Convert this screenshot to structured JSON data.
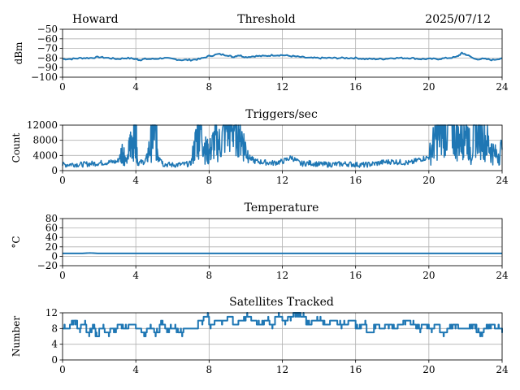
{
  "header": {
    "left": "Howard",
    "center": "Threshold",
    "right": "2025/07/12"
  },
  "colors": {
    "series": "#1f77b4",
    "grid": "#b0b0b0",
    "axis": "#000000"
  },
  "chart_data": [
    {
      "type": "line",
      "title": "",
      "xlabel": "",
      "ylabel": "dBm",
      "xlim": [
        0,
        24
      ],
      "ylim": [
        -100,
        -50
      ],
      "x_ticks": [
        0,
        4,
        8,
        12,
        16,
        20,
        24
      ],
      "x_tick_labels": [
        "0",
        "4",
        "8",
        "12",
        "16",
        "20",
        "24"
      ],
      "y_ticks": [
        -100,
        -90,
        -80,
        -70,
        -60,
        -50
      ],
      "y_tick_labels": [
        "−100",
        "−90",
        "−80",
        "−70",
        "−60",
        "−50"
      ],
      "grid": true,
      "series": [
        {
          "style": "smooth",
          "x": [
            0,
            0.5,
            1,
            1.5,
            2,
            2.5,
            3,
            3.5,
            4,
            4.2,
            4.5,
            5,
            5.5,
            6,
            6.5,
            7,
            7.5,
            8,
            8.5,
            9,
            9.3,
            9.6,
            10,
            10.5,
            11,
            11.5,
            12,
            12.5,
            13,
            13.5,
            14,
            14.5,
            15,
            15.5,
            16,
            16.5,
            17,
            17.5,
            18,
            18.5,
            19,
            19.5,
            20,
            20.5,
            21,
            21.5,
            21.8,
            22,
            22.5,
            23,
            23.5,
            24
          ],
          "values": [
            -81,
            -81,
            -80,
            -80,
            -79,
            -80,
            -81,
            -80,
            -81,
            -82,
            -81,
            -81,
            -80,
            -81,
            -82,
            -82,
            -81,
            -78,
            -76,
            -77,
            -79,
            -77,
            -79,
            -78,
            -78,
            -77,
            -77,
            -78,
            -79,
            -80,
            -80,
            -80,
            -80,
            -80,
            -80,
            -81,
            -81,
            -81,
            -80,
            -80,
            -80,
            -81,
            -81,
            -81,
            -80,
            -79,
            -75,
            -76,
            -81,
            -81,
            -82,
            -80
          ]
        }
      ]
    },
    {
      "type": "line",
      "title": "Triggers/sec",
      "xlabel": "",
      "ylabel": "Count",
      "xlim": [
        0,
        24
      ],
      "ylim": [
        0,
        12000
      ],
      "x_ticks": [
        0,
        4,
        8,
        12,
        16,
        20,
        24
      ],
      "x_tick_labels": [
        "0",
        "4",
        "8",
        "12",
        "16",
        "20",
        "24"
      ],
      "y_ticks": [
        0,
        4000,
        8000,
        12000
      ],
      "y_tick_labels": [
        "0",
        "4000",
        "8000",
        "12000"
      ],
      "grid": true,
      "series": [
        {
          "style": "noisy",
          "x": [
            0,
            0.5,
            1,
            1.5,
            2,
            2.5,
            3,
            3.3,
            3.5,
            3.7,
            3.9,
            4,
            4.1,
            4.5,
            4.8,
            5,
            5.2,
            5.5,
            6,
            6.5,
            7,
            7.3,
            7.5,
            7.8,
            8,
            8.3,
            8.6,
            9,
            9.3,
            9.6,
            9.9,
            10.2,
            10.5,
            11,
            11.5,
            12,
            12.5,
            13,
            13.5,
            14,
            14.5,
            15,
            15.5,
            16,
            16.5,
            17,
            17.5,
            18,
            18.5,
            19,
            19.5,
            20,
            20.3,
            20.6,
            20.9,
            21.2,
            21.5,
            21.8,
            22,
            22.3,
            22.6,
            23,
            23.3,
            23.6,
            24
          ],
          "values": [
            1500,
            1700,
            1600,
            1800,
            2000,
            2200,
            2400,
            5500,
            2200,
            7000,
            9000,
            12000,
            2000,
            2400,
            6500,
            12000,
            5000,
            1700,
            1500,
            1600,
            1800,
            8000,
            12000,
            5500,
            4500,
            8000,
            7000,
            12000,
            12000,
            12000,
            7000,
            3500,
            2500,
            2200,
            2000,
            2400,
            3500,
            1800,
            2000,
            1700,
            1600,
            1700,
            1800,
            1600,
            1500,
            1800,
            2200,
            2400,
            2200,
            2000,
            3000,
            3500,
            8000,
            10000,
            12000,
            12000,
            8000,
            9000,
            12000,
            4500,
            12000,
            9000,
            6500,
            4000,
            5500
          ]
        }
      ]
    },
    {
      "type": "line",
      "title": "Temperature",
      "xlabel": "",
      "ylabel": "°C",
      "xlim": [
        0,
        24
      ],
      "ylim": [
        -20,
        80
      ],
      "x_ticks": [
        0,
        4,
        8,
        12,
        16,
        20,
        24
      ],
      "x_tick_labels": [
        "0",
        "4",
        "8",
        "12",
        "16",
        "20",
        "24"
      ],
      "y_ticks": [
        -20,
        0,
        20,
        40,
        60,
        80
      ],
      "y_tick_labels": [
        "−20",
        "0",
        "20",
        "40",
        "60",
        "80"
      ],
      "grid": true,
      "series": [
        {
          "style": "smooth",
          "x": [
            0,
            1,
            1.5,
            2,
            3,
            4,
            6,
            8,
            10,
            12,
            14,
            16,
            18,
            20,
            22,
            24
          ],
          "values": [
            6,
            6,
            7,
            6,
            6,
            6,
            6,
            6,
            6,
            6,
            6,
            6,
            6,
            6,
            6,
            6
          ]
        }
      ]
    },
    {
      "type": "line",
      "title": "Satellites Tracked",
      "xlabel": "",
      "ylabel": "Number",
      "xlim": [
        0,
        24
      ],
      "ylim": [
        0,
        12
      ],
      "x_ticks": [
        0,
        4,
        8,
        12,
        16,
        20,
        24
      ],
      "x_tick_labels": [
        "0",
        "4",
        "8",
        "12",
        "16",
        "20",
        "24"
      ],
      "y_ticks": [
        0,
        4,
        8,
        12
      ],
      "y_tick_labels": [
        "0",
        "4",
        "8",
        "12"
      ],
      "grid": true,
      "series": [
        {
          "style": "step",
          "x": [
            0,
            0.4,
            0.6,
            0.8,
            1,
            1.3,
            1.5,
            1.8,
            2,
            2.3,
            2.6,
            3,
            3.3,
            3.6,
            4,
            4.3,
            4.6,
            5,
            5.3,
            5.6,
            6,
            6.3,
            6.6,
            7,
            7.4,
            7.7,
            8,
            8.3,
            8.6,
            9,
            9.3,
            9.6,
            10,
            10.3,
            10.6,
            11,
            11.3,
            11.6,
            12,
            12.3,
            12.6,
            13,
            13.3,
            13.6,
            14,
            14.3,
            14.6,
            15,
            15.3,
            15.6,
            16,
            16.3,
            16.6,
            17,
            17.3,
            17.6,
            18,
            18.3,
            18.6,
            19,
            19.3,
            19.6,
            20,
            20.3,
            20.6,
            21,
            21.3,
            21.6,
            22,
            22.3,
            22.6,
            23,
            23.3,
            23.6,
            24
          ],
          "values": [
            8,
            9,
            10,
            8,
            9,
            7,
            8,
            6,
            8,
            7,
            8,
            9,
            8,
            9,
            8,
            7,
            8,
            7,
            9,
            8,
            8,
            7,
            8,
            8,
            10,
            11,
            9,
            10,
            10,
            11,
            9,
            10,
            11,
            10,
            9,
            10,
            9,
            11,
            10,
            11,
            12,
            11,
            9,
            10,
            10,
            9,
            10,
            9,
            9,
            10,
            8,
            9,
            7,
            9,
            8,
            9,
            8,
            9,
            10,
            9,
            8,
            9,
            8,
            9,
            7,
            8,
            9,
            8,
            8,
            9,
            7,
            8,
            9,
            8,
            8
          ]
        }
      ]
    }
  ]
}
